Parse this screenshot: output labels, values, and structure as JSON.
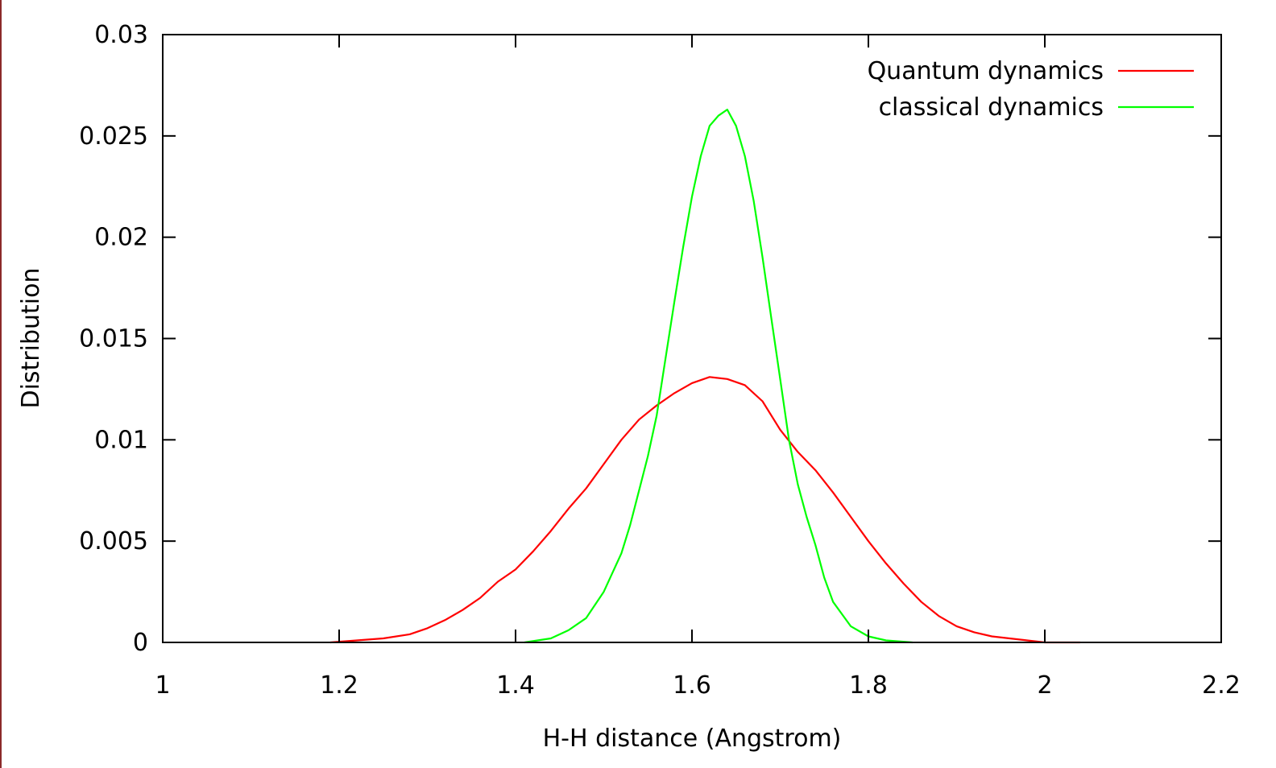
{
  "chart_data": {
    "type": "line",
    "title": "",
    "xlabel": "H-H distance (Angstrom)",
    "ylabel": "Distribution",
    "xlim": [
      1,
      2.2
    ],
    "ylim": [
      0,
      0.03
    ],
    "x_ticks": [
      1,
      1.2,
      1.4,
      1.6,
      1.8,
      2,
      2.2
    ],
    "x_tick_labels": [
      "1",
      "1.2",
      "1.4",
      "1.6",
      "1.8",
      "2",
      "2.2"
    ],
    "y_ticks": [
      0,
      0.005,
      0.01,
      0.015,
      0.02,
      0.025,
      0.03
    ],
    "y_tick_labels": [
      "0",
      "0.005",
      "0.01",
      "0.015",
      "0.02",
      "0.025",
      "0.03"
    ],
    "grid": false,
    "legend": {
      "position": "top-right"
    },
    "series": [
      {
        "name": "Quantum dynamics",
        "color": "#ff0000",
        "x": [
          1.19,
          1.22,
          1.25,
          1.28,
          1.3,
          1.32,
          1.34,
          1.36,
          1.38,
          1.4,
          1.42,
          1.44,
          1.46,
          1.48,
          1.5,
          1.52,
          1.54,
          1.56,
          1.58,
          1.6,
          1.62,
          1.64,
          1.66,
          1.68,
          1.7,
          1.72,
          1.74,
          1.76,
          1.78,
          1.8,
          1.82,
          1.84,
          1.86,
          1.88,
          1.9,
          1.92,
          1.94,
          1.96,
          1.98,
          2.0,
          2.04
        ],
        "y": [
          0.0,
          0.0001,
          0.0002,
          0.0004,
          0.0007,
          0.0011,
          0.0016,
          0.0022,
          0.003,
          0.0036,
          0.0045,
          0.0055,
          0.0066,
          0.0076,
          0.0088,
          0.01,
          0.011,
          0.0117,
          0.0123,
          0.0128,
          0.0131,
          0.013,
          0.0127,
          0.0119,
          0.0105,
          0.0094,
          0.0085,
          0.0074,
          0.0062,
          0.005,
          0.0039,
          0.0029,
          0.002,
          0.0013,
          0.0008,
          0.0005,
          0.0003,
          0.0002,
          0.0001,
          0.0,
          0.0
        ]
      },
      {
        "name": "classical dynamics",
        "color": "#00ff00",
        "x": [
          1.41,
          1.44,
          1.46,
          1.48,
          1.5,
          1.52,
          1.53,
          1.54,
          1.55,
          1.56,
          1.57,
          1.58,
          1.59,
          1.6,
          1.61,
          1.62,
          1.63,
          1.64,
          1.65,
          1.66,
          1.67,
          1.68,
          1.69,
          1.7,
          1.71,
          1.72,
          1.73,
          1.74,
          1.75,
          1.76,
          1.78,
          1.8,
          1.82,
          1.85
        ],
        "y": [
          0.0,
          0.0002,
          0.0006,
          0.0012,
          0.0025,
          0.0044,
          0.0058,
          0.0075,
          0.0092,
          0.0112,
          0.014,
          0.0168,
          0.0195,
          0.022,
          0.024,
          0.0255,
          0.026,
          0.0263,
          0.0255,
          0.024,
          0.0218,
          0.019,
          0.016,
          0.013,
          0.01,
          0.0078,
          0.0062,
          0.0048,
          0.0032,
          0.002,
          0.0008,
          0.0003,
          0.0001,
          0.0
        ]
      }
    ]
  }
}
